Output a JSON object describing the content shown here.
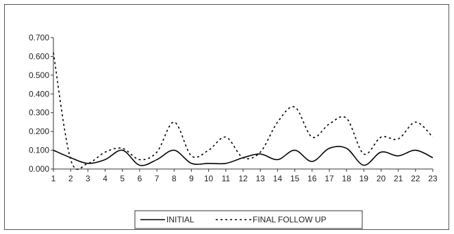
{
  "chart_data": {
    "type": "line",
    "title": "",
    "xlabel": "",
    "ylabel": "",
    "x": [
      1,
      2,
      3,
      4,
      5,
      6,
      7,
      8,
      9,
      10,
      11,
      12,
      13,
      14,
      15,
      16,
      17,
      18,
      19,
      20,
      21,
      22,
      23
    ],
    "x_tick_labels": [
      "1",
      "2",
      "3",
      "4",
      "5",
      "6",
      "7",
      "8",
      "9",
      "10",
      "11",
      "12",
      "13",
      "14",
      "15",
      "16",
      "17",
      "18",
      "19",
      "20",
      "21",
      "22",
      "23"
    ],
    "y_tick_labels": [
      "0.000",
      "0.100",
      "0.200",
      "0.300",
      "0.400",
      "0.500",
      "0.600",
      "0.700"
    ],
    "ylim": [
      0,
      0.7
    ],
    "grid": false,
    "legend_position": "bottom",
    "series": [
      {
        "name": "INITIAL",
        "style": "solid",
        "color": "#000000",
        "values": [
          0.1,
          0.06,
          0.03,
          0.05,
          0.1,
          0.02,
          0.05,
          0.1,
          0.03,
          0.03,
          0.03,
          0.06,
          0.08,
          0.05,
          0.1,
          0.04,
          0.11,
          0.11,
          0.02,
          0.09,
          0.07,
          0.1,
          0.06
        ]
      },
      {
        "name": "FINAL FOLLOW UP",
        "style": "dotted",
        "color": "#000000",
        "values": [
          0.62,
          0.05,
          0.03,
          0.09,
          0.11,
          0.05,
          0.09,
          0.25,
          0.07,
          0.1,
          0.17,
          0.06,
          0.09,
          0.25,
          0.33,
          0.17,
          0.24,
          0.27,
          0.08,
          0.17,
          0.16,
          0.25,
          0.17
        ]
      }
    ]
  }
}
